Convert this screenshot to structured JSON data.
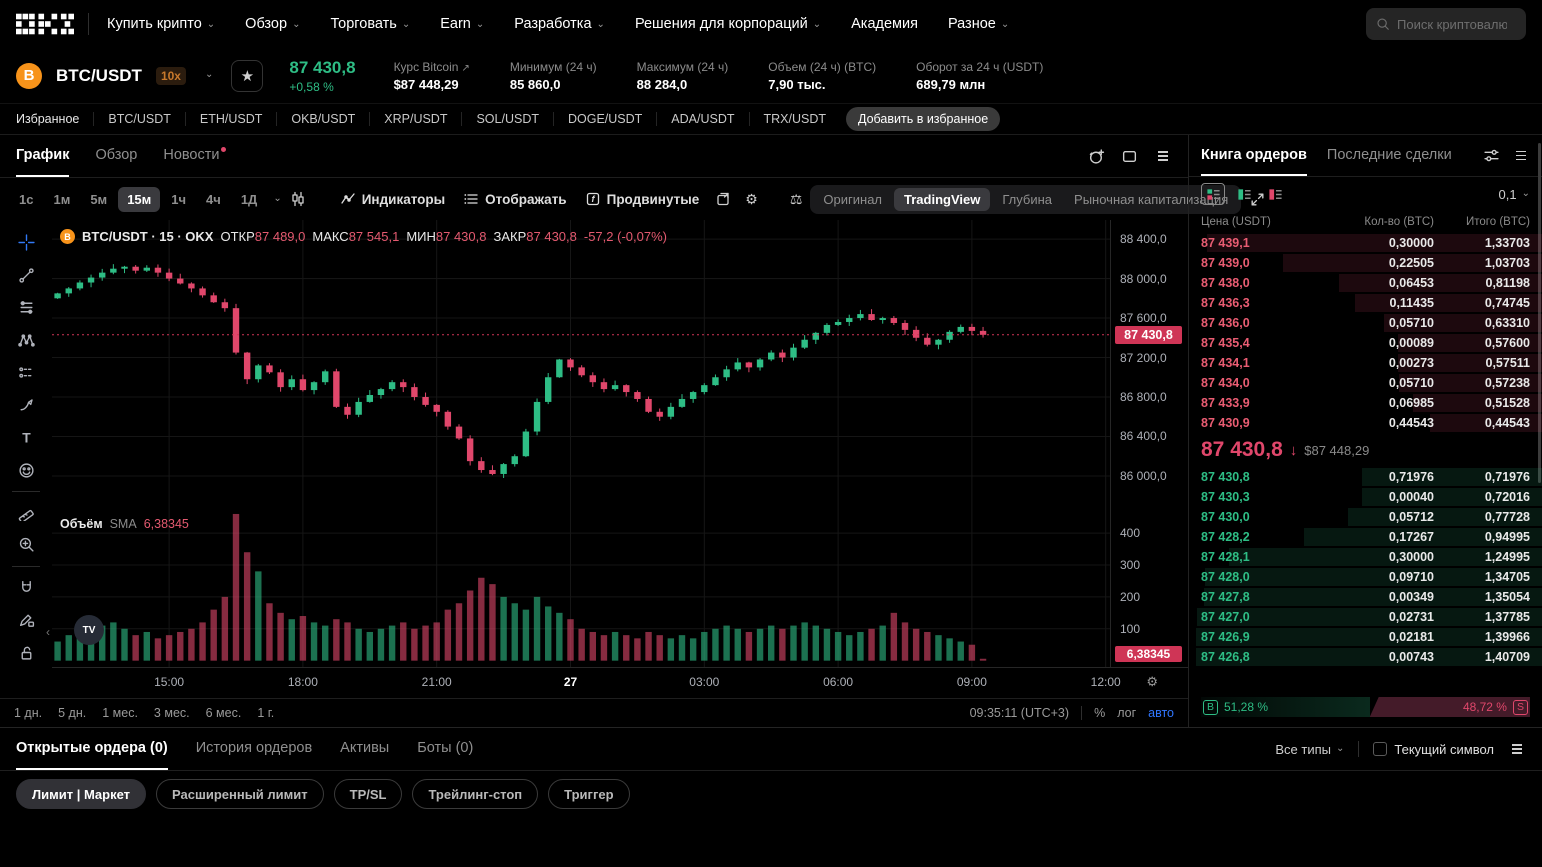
{
  "colors": {
    "green": "#2ebd85",
    "red": "#e0476b",
    "badge_red": "#cf3556",
    "accent_blue": "#3076ff",
    "bitcoin_orange": "#f7931a"
  },
  "nav": {
    "logo": "OKX",
    "items": [
      {
        "label": "Купить крипто",
        "chevron": true
      },
      {
        "label": "Обзор",
        "chevron": true
      },
      {
        "label": "Торговать",
        "chevron": true
      },
      {
        "label": "Earn",
        "chevron": true
      },
      {
        "label": "Разработка",
        "chevron": true
      },
      {
        "label": "Решения для корпораций",
        "chevron": true
      },
      {
        "label": "Академия",
        "chevron": false
      },
      {
        "label": "Разное",
        "chevron": true
      }
    ],
    "search_placeholder": "Поиск криптовалюты"
  },
  "ticker": {
    "coin_letter": "B",
    "pair": "BTC/USDT",
    "leverage": "10x",
    "price": "87 430,8",
    "change": "+0,58 %",
    "stats": [
      {
        "label": "Курс Bitcoin",
        "value": "$87 448,29",
        "link": true
      },
      {
        "label": "Минимум (24 ч)",
        "value": "85 860,0"
      },
      {
        "label": "Максимум (24 ч)",
        "value": "88 284,0"
      },
      {
        "label": "Объем (24 ч) (BTC)",
        "value": "7,90 тыс."
      },
      {
        "label": "Оборот за 24 ч (USDT)",
        "value": "689,79 млн"
      }
    ]
  },
  "favorites": {
    "label": "Избранное",
    "pairs": [
      "BTC/USDT",
      "ETH/USDT",
      "OKB/USDT",
      "XRP/USDT",
      "SOL/USDT",
      "DOGE/USDT",
      "ADA/USDT",
      "TRX/USDT"
    ],
    "add_button": "Добавить в избранное"
  },
  "chart_tabs": {
    "items": [
      {
        "label": "График",
        "active": true
      },
      {
        "label": "Обзор"
      },
      {
        "label": "Новости",
        "dot": true
      }
    ]
  },
  "toolbar": {
    "timeframes": [
      {
        "label": "1с"
      },
      {
        "label": "1м"
      },
      {
        "label": "5м"
      },
      {
        "label": "15м",
        "active": true
      },
      {
        "label": "1ч"
      },
      {
        "label": "4ч"
      },
      {
        "label": "1Д",
        "chevron": true
      }
    ],
    "indicators": "Индикаторы",
    "display": "Отображать",
    "advanced": "Продвинутые",
    "modes": [
      {
        "label": "Оригинал"
      },
      {
        "label": "TradingView",
        "active": true
      },
      {
        "label": "Глубина"
      },
      {
        "label": "Рыночная капитализация"
      }
    ]
  },
  "chart": {
    "legend": {
      "symbol": "BTC/USDT · 15 · OKX",
      "o_label": "ОТКР",
      "o": "87 489,0",
      "h_label": "МАКС",
      "h": "87 545,1",
      "l_label": "МИН",
      "l": "87 430,8",
      "c_label": "ЗАКР",
      "c": "87 430,8",
      "change": "-57,2 (-0,07%)"
    },
    "y_ticks": [
      {
        "label": "88 400,0",
        "value": 88400
      },
      {
        "label": "88 000,0",
        "value": 88000
      },
      {
        "label": "87 600,0",
        "value": 87600
      },
      {
        "label": "87 200,0",
        "value": 87200
      },
      {
        "label": "86 800,0",
        "value": 86800
      },
      {
        "label": "86 400,0",
        "value": 86400
      },
      {
        "label": "86 000,0",
        "value": 86000
      }
    ],
    "price_badge": "87 430,8",
    "current_price": 87430.8,
    "vol_legend": {
      "title": "Объём",
      "sma": "SMA",
      "value": "6,38345"
    },
    "vol_ticks": [
      {
        "label": "400",
        "value": 400
      },
      {
        "label": "300",
        "value": 300
      },
      {
        "label": "200",
        "value": 200
      },
      {
        "label": "100",
        "value": 100
      }
    ],
    "vol_badge": "6,38345",
    "x_ticks": [
      {
        "label": "15:00",
        "slot": 10
      },
      {
        "label": "18:00",
        "slot": 22
      },
      {
        "label": "21:00",
        "slot": 34
      },
      {
        "label": "27",
        "slot": 46,
        "bold": true
      },
      {
        "label": "03:00",
        "slot": 58
      },
      {
        "label": "06:00",
        "slot": 70
      },
      {
        "label": "09:00",
        "slot": 82
      },
      {
        "label": "12:00",
        "slot": 94
      }
    ],
    "candles": {
      "open0": 87800,
      "closes": [
        87850,
        87900,
        87960,
        88010,
        88060,
        88100,
        88120,
        88080,
        88110,
        88060,
        88000,
        87950,
        87900,
        87830,
        87760,
        87700,
        87250,
        86980,
        87120,
        87050,
        86900,
        86980,
        86870,
        86950,
        87060,
        86700,
        86620,
        86750,
        86820,
        86880,
        86950,
        86900,
        86800,
        86720,
        86650,
        86500,
        86380,
        86150,
        86060,
        86020,
        86120,
        86200,
        86450,
        86750,
        87000,
        87180,
        87100,
        87020,
        86950,
        86880,
        86920,
        86850,
        86780,
        86650,
        86600,
        86700,
        86780,
        86850,
        86920,
        87000,
        87080,
        87150,
        87100,
        87180,
        87250,
        87200,
        87300,
        87380,
        87450,
        87530,
        87560,
        87600,
        87640,
        87580,
        87600,
        87550,
        87480,
        87400,
        87330,
        87380,
        87460,
        87510,
        87470,
        87430
      ],
      "volumes": [
        60,
        80,
        100,
        90,
        110,
        120,
        100,
        80,
        90,
        70,
        80,
        90,
        100,
        120,
        160,
        200,
        460,
        340,
        280,
        180,
        150,
        130,
        140,
        120,
        110,
        130,
        120,
        100,
        90,
        100,
        110,
        120,
        100,
        110,
        120,
        160,
        180,
        220,
        260,
        240,
        200,
        180,
        160,
        200,
        170,
        150,
        130,
        100,
        90,
        80,
        90,
        80,
        70,
        90,
        80,
        70,
        80,
        70,
        90,
        100,
        110,
        100,
        90,
        100,
        110,
        100,
        110,
        120,
        110,
        100,
        90,
        80,
        90,
        100,
        110,
        150,
        120,
        100,
        90,
        80,
        70,
        60,
        50,
        6
      ]
    },
    "range_buttons": [
      "1 дн.",
      "5 дн.",
      "1 мес.",
      "3 мес.",
      "6 мес.",
      "1 г."
    ],
    "clock": "09:35:11 (UTC+3)",
    "scale_buttons": [
      {
        "label": "%"
      },
      {
        "label": "лог"
      },
      {
        "label": "авто",
        "blue": true
      }
    ]
  },
  "orderbook": {
    "tabs": [
      {
        "label": "Книга ордеров",
        "active": true
      },
      {
        "label": "Последние сделки"
      }
    ],
    "precision": "0,1",
    "headers": [
      "Цена (USDT)",
      "Кол-во (BTC)",
      "Итого (BTC)"
    ],
    "asks": [
      [
        "87 439,1",
        "0,30000",
        "1,33703"
      ],
      [
        "87 439,0",
        "0,22505",
        "1,03703"
      ],
      [
        "87 438,0",
        "0,06453",
        "0,81198"
      ],
      [
        "87 436,3",
        "0,11435",
        "0,74745"
      ],
      [
        "87 436,0",
        "0,05710",
        "0,63310"
      ],
      [
        "87 435,4",
        "0,00089",
        "0,57600"
      ],
      [
        "87 434,1",
        "0,00273",
        "0,57511"
      ],
      [
        "87 434,0",
        "0,05710",
        "0,57238"
      ],
      [
        "87 433,9",
        "0,06985",
        "0,51528"
      ],
      [
        "87 430,9",
        "0,44543",
        "0,44543"
      ]
    ],
    "mid": {
      "price": "87 430,8",
      "usd": "$87 448,29"
    },
    "bids": [
      [
        "87 430,8",
        "0,71976",
        "0,71976"
      ],
      [
        "87 430,3",
        "0,00040",
        "0,72016"
      ],
      [
        "87 430,0",
        "0,05712",
        "0,77728"
      ],
      [
        "87 428,2",
        "0,17267",
        "0,94995"
      ],
      [
        "87 428,1",
        "0,30000",
        "1,24995"
      ],
      [
        "87 428,0",
        "0,09710",
        "1,34705"
      ],
      [
        "87 427,8",
        "0,00349",
        "1,35054"
      ],
      [
        "87 427,0",
        "0,02731",
        "1,37785"
      ],
      [
        "87 426,9",
        "0,02181",
        "1,39966"
      ],
      [
        "87 426,8",
        "0,00743",
        "1,40709"
      ]
    ],
    "ratio": {
      "buy_label": "B",
      "buy": "51,28 %",
      "buy_pct": 51.28,
      "sell": "48,72 %",
      "sell_pct": 48.72,
      "sell_label": "S"
    }
  },
  "bottom": {
    "tabs": [
      {
        "label": "Открытые ордера (0)",
        "active": true
      },
      {
        "label": "История ордеров"
      },
      {
        "label": "Активы"
      },
      {
        "label": "Боты (0)"
      }
    ],
    "filters": {
      "all_types": "Все типы",
      "current_symbol": "Текущий символ"
    },
    "order_types": [
      {
        "label": "Лимит | Маркет",
        "filled": true
      },
      {
        "label": "Расширенный лимит"
      },
      {
        "label": "TP/SL"
      },
      {
        "label": "Трейлинг-стоп"
      },
      {
        "label": "Триггер"
      }
    ]
  },
  "drawing_tools": [
    "crosshair",
    "trend-line",
    "fib-retracement",
    "xabcd-pattern",
    "forecast",
    "brush",
    "text",
    "emoji",
    "ruler",
    "zoom-in",
    "magnet",
    "draw-lock",
    "lock"
  ]
}
